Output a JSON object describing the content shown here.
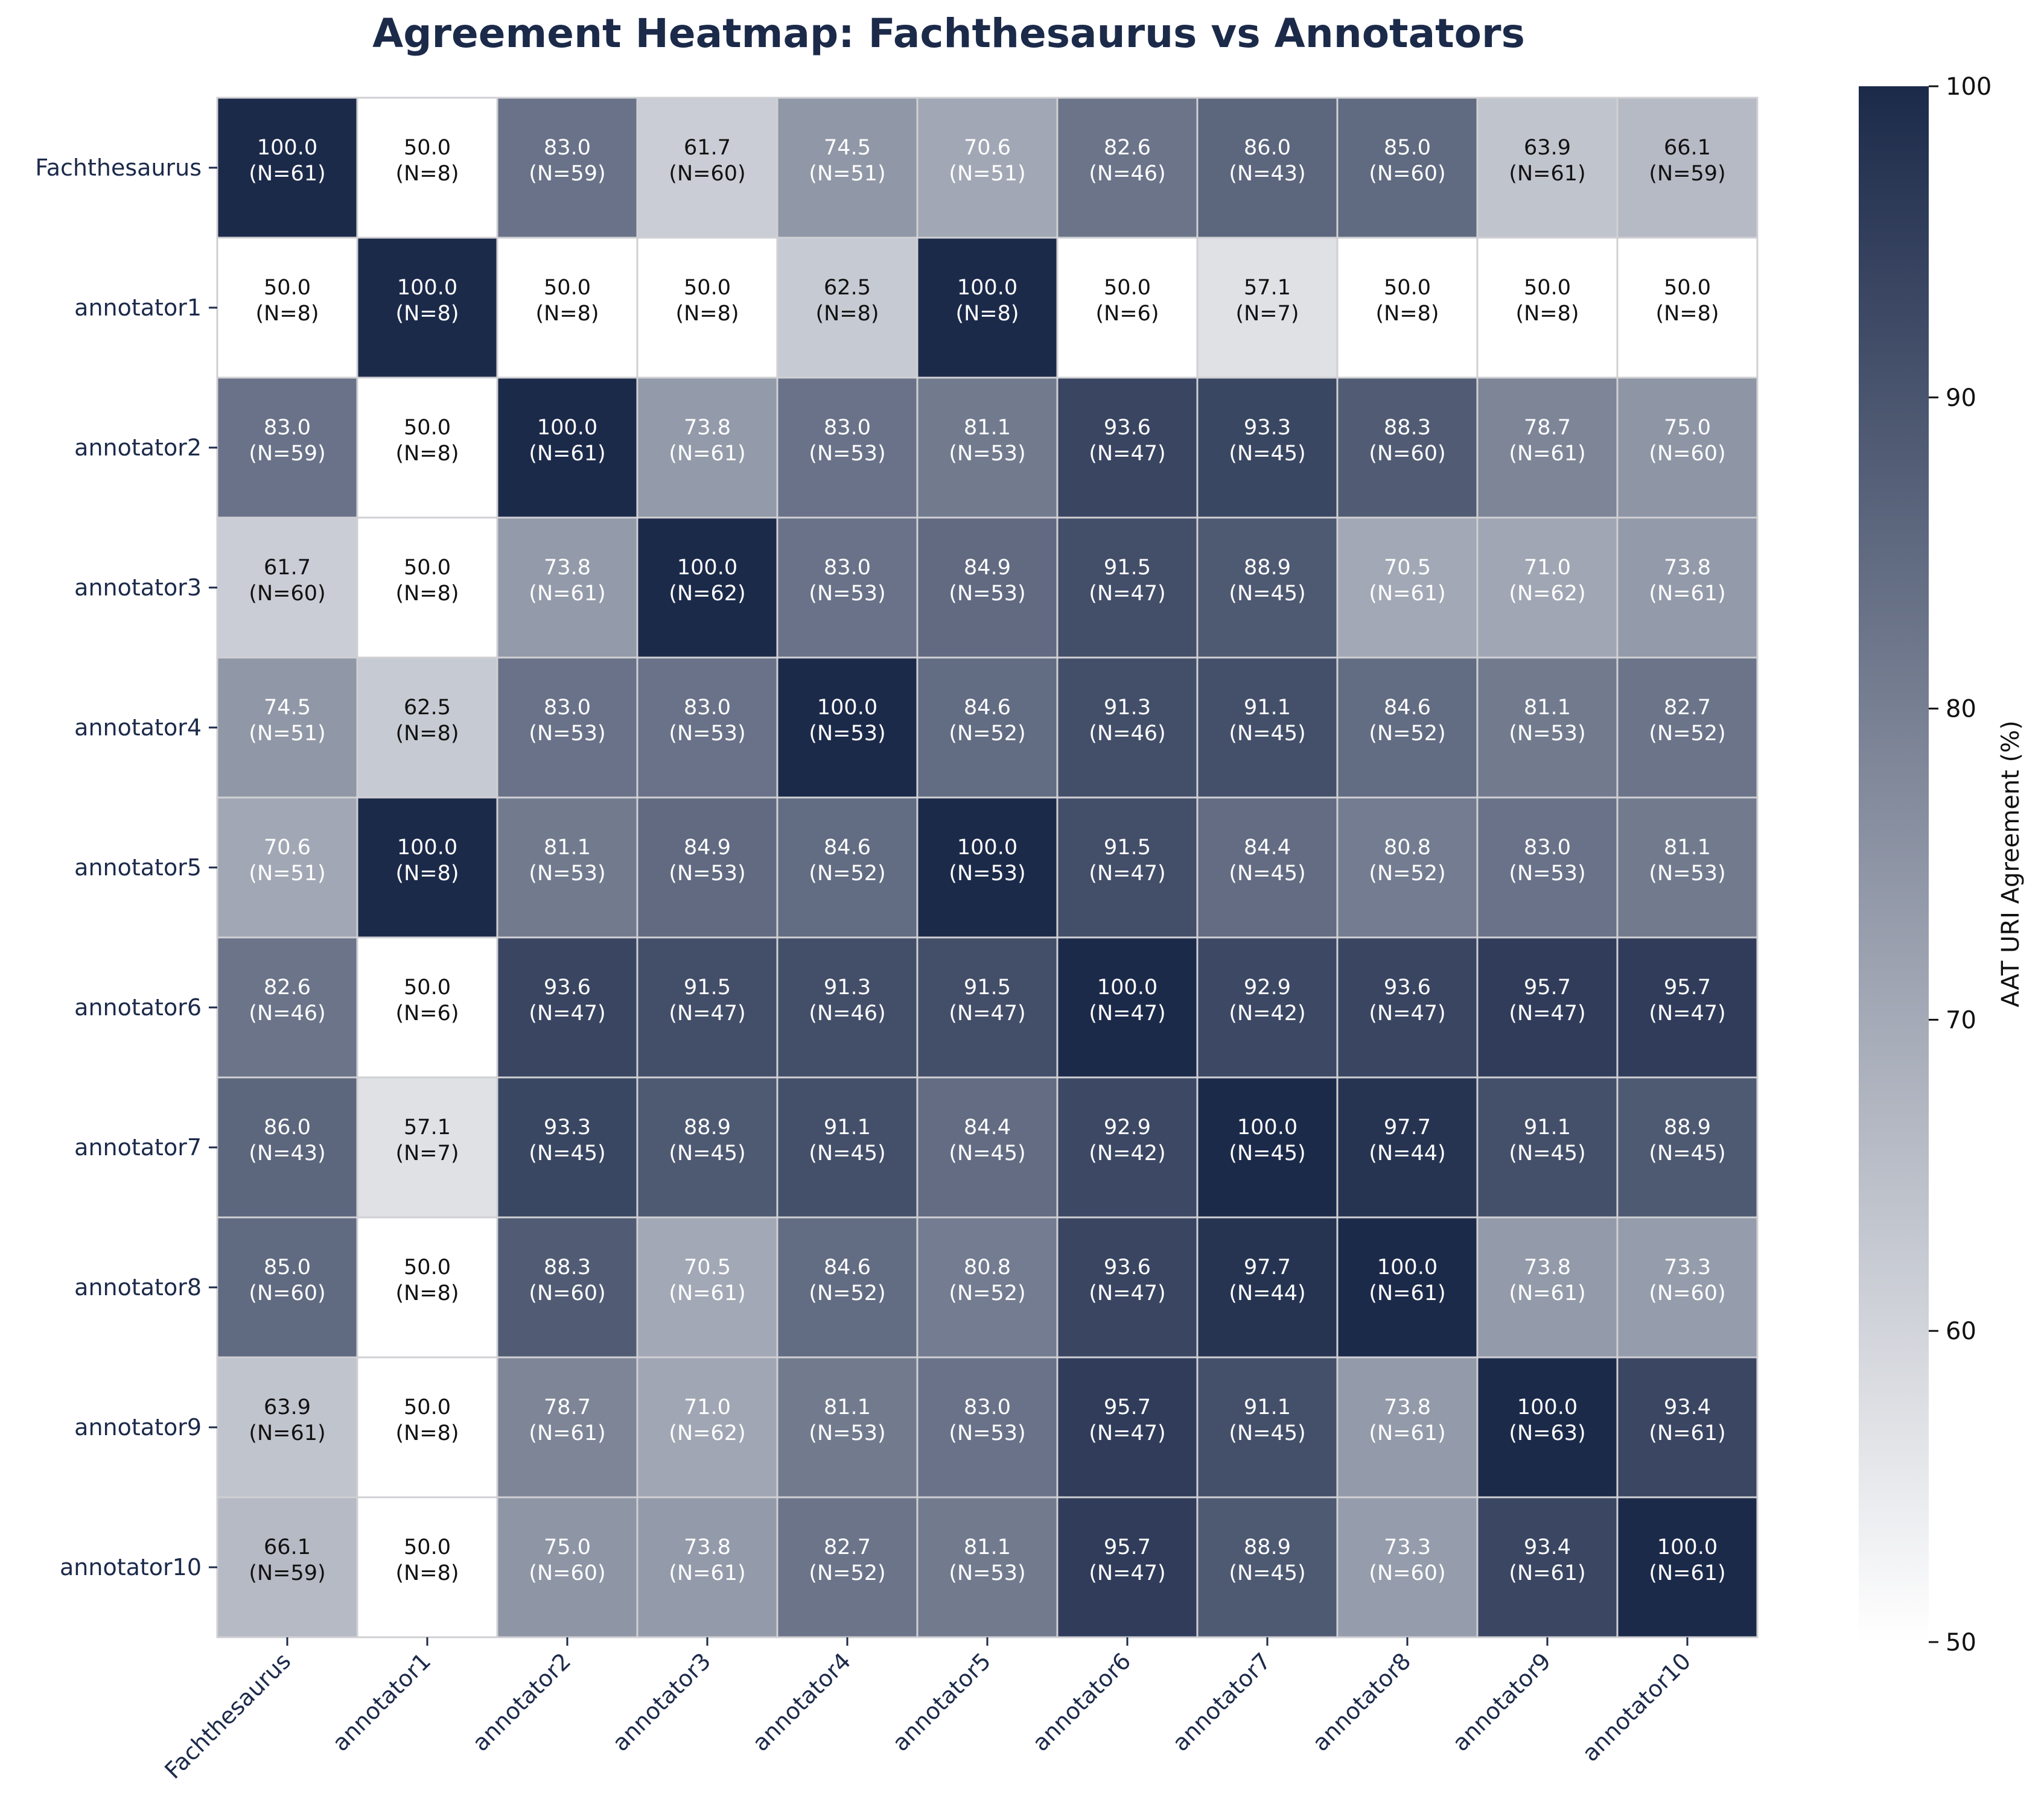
{
  "chart_data": {
    "type": "heatmap",
    "title": "Agreement Heatmap: Fachthesaurus vs Annotators",
    "row_labels": [
      "Fachthesaurus",
      "annotator1",
      "annotator2",
      "annotator3",
      "annotator4",
      "annotator5",
      "annotator6",
      "annotator7",
      "annotator8",
      "annotator9",
      "annotator10"
    ],
    "col_labels": [
      "Fachthesaurus",
      "annotator1",
      "annotator2",
      "annotator3",
      "annotator4",
      "annotator5",
      "annotator6",
      "annotator7",
      "annotator8",
      "annotator9",
      "annotator10"
    ],
    "values": [
      [
        100.0,
        50.0,
        83.0,
        61.7,
        74.5,
        70.6,
        82.6,
        86.0,
        85.0,
        63.9,
        66.1
      ],
      [
        50.0,
        100.0,
        50.0,
        50.0,
        62.5,
        100.0,
        50.0,
        57.1,
        50.0,
        50.0,
        50.0
      ],
      [
        83.0,
        50.0,
        100.0,
        73.8,
        83.0,
        81.1,
        93.6,
        93.3,
        88.3,
        78.7,
        75.0
      ],
      [
        61.7,
        50.0,
        73.8,
        100.0,
        83.0,
        84.9,
        91.5,
        88.9,
        70.5,
        71.0,
        73.8
      ],
      [
        74.5,
        62.5,
        83.0,
        83.0,
        100.0,
        84.6,
        91.3,
        91.1,
        84.6,
        81.1,
        82.7
      ],
      [
        70.6,
        100.0,
        81.1,
        84.9,
        84.6,
        100.0,
        91.5,
        84.4,
        80.8,
        83.0,
        81.1
      ],
      [
        82.6,
        50.0,
        93.6,
        91.5,
        91.3,
        91.5,
        100.0,
        92.9,
        93.6,
        95.7,
        95.7
      ],
      [
        86.0,
        57.1,
        93.3,
        88.9,
        91.1,
        84.4,
        92.9,
        100.0,
        97.7,
        91.1,
        88.9
      ],
      [
        85.0,
        50.0,
        88.3,
        70.5,
        84.6,
        80.8,
        93.6,
        97.7,
        100.0,
        73.8,
        73.3
      ],
      [
        63.9,
        50.0,
        78.7,
        71.0,
        81.1,
        83.0,
        95.7,
        91.1,
        73.8,
        100.0,
        93.4
      ],
      [
        66.1,
        50.0,
        75.0,
        73.8,
        82.7,
        81.1,
        95.7,
        88.9,
        73.3,
        93.4,
        100.0
      ]
    ],
    "counts": [
      [
        61,
        8,
        59,
        60,
        51,
        51,
        46,
        43,
        60,
        61,
        59
      ],
      [
        8,
        8,
        8,
        8,
        8,
        8,
        6,
        7,
        8,
        8,
        8
      ],
      [
        59,
        8,
        61,
        61,
        53,
        53,
        47,
        45,
        60,
        61,
        60
      ],
      [
        60,
        8,
        61,
        62,
        53,
        53,
        47,
        45,
        61,
        62,
        61
      ],
      [
        51,
        8,
        53,
        53,
        53,
        52,
        46,
        45,
        52,
        53,
        52
      ],
      [
        51,
        8,
        53,
        53,
        52,
        53,
        47,
        45,
        52,
        53,
        53
      ],
      [
        46,
        6,
        47,
        47,
        46,
        47,
        47,
        42,
        47,
        47,
        47
      ],
      [
        43,
        7,
        45,
        45,
        45,
        45,
        42,
        45,
        44,
        45,
        45
      ],
      [
        60,
        8,
        60,
        61,
        52,
        52,
        47,
        44,
        61,
        61,
        60
      ],
      [
        61,
        8,
        61,
        62,
        53,
        53,
        47,
        45,
        61,
        63,
        61
      ],
      [
        59,
        8,
        60,
        61,
        52,
        53,
        47,
        45,
        60,
        61,
        61
      ]
    ],
    "colorbar": {
      "label": "AAT URI Agreement (%)",
      "range": [
        50,
        100
      ],
      "ticks": [
        50,
        60,
        70,
        80,
        90,
        100
      ],
      "color_low": "#ffffff",
      "color_high": "#1c2a4a"
    },
    "cell_format": "{v}\n(N={n})",
    "grid": false,
    "text_color_light": "#ffffff",
    "text_color_dark": "#111111"
  }
}
